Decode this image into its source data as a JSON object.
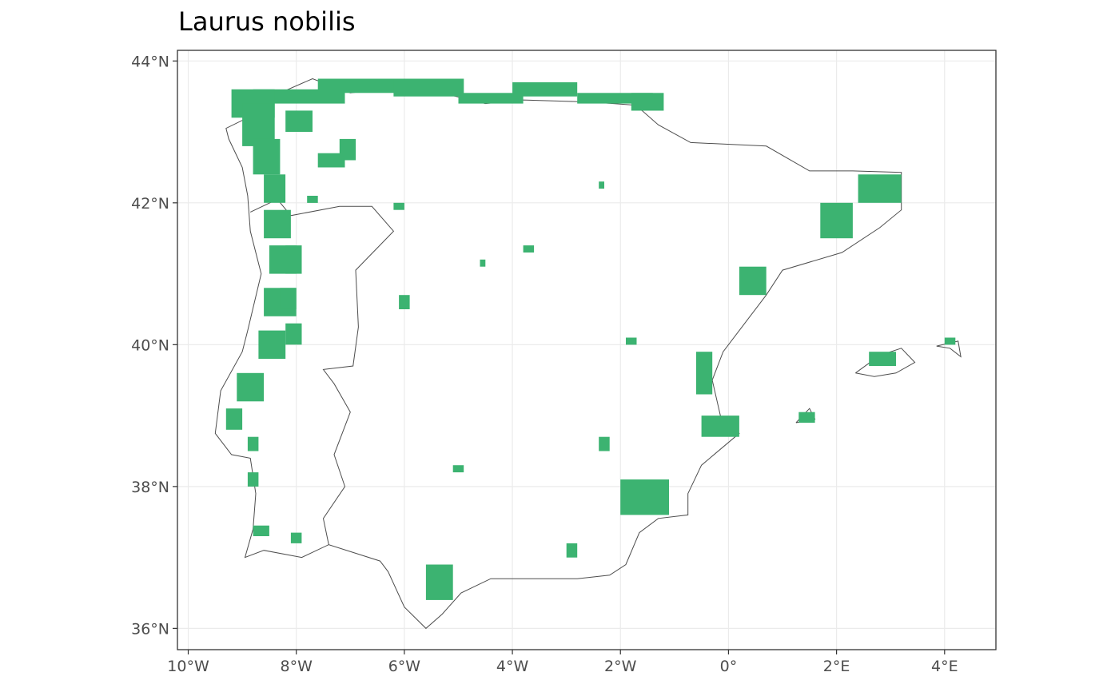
{
  "title": "Laurus nobilis",
  "colors": {
    "occurrence": "#3cb371",
    "coastline": "#4d4d4d",
    "grid": "#ebebeb",
    "frame": "#333333",
    "tick_label": "#4d4d4d"
  },
  "chart_data": {
    "type": "map",
    "projection": "longitude-latitude",
    "xlim": [
      -10.2,
      4.95
    ],
    "ylim": [
      35.7,
      44.15
    ],
    "grid": true,
    "x_ticks": [
      {
        "value": -10,
        "label": "10°W"
      },
      {
        "value": -8,
        "label": "8°W"
      },
      {
        "value": -6,
        "label": "6°W"
      },
      {
        "value": -4,
        "label": "4°W"
      },
      {
        "value": -2,
        "label": "2°W"
      },
      {
        "value": 0,
        "label": "0°"
      },
      {
        "value": 2,
        "label": "2°E"
      },
      {
        "value": 4,
        "label": "4°E"
      }
    ],
    "y_ticks": [
      {
        "value": 36,
        "label": "36°N"
      },
      {
        "value": 38,
        "label": "38°N"
      },
      {
        "value": 40,
        "label": "40°N"
      },
      {
        "value": 42,
        "label": "42°N"
      },
      {
        "value": 44,
        "label": "44°N"
      }
    ],
    "outlines": [
      {
        "name": "Iberian Peninsula",
        "points": [
          [
            -8.9,
            43.2
          ],
          [
            -8.3,
            43.55
          ],
          [
            -7.7,
            43.75
          ],
          [
            -7.0,
            43.55
          ],
          [
            -5.85,
            43.65
          ],
          [
            -4.5,
            43.4
          ],
          [
            -3.8,
            43.45
          ],
          [
            -2.5,
            43.42
          ],
          [
            -1.8,
            43.38
          ],
          [
            -1.6,
            43.3
          ],
          [
            -1.3,
            43.1
          ],
          [
            -0.7,
            42.85
          ],
          [
            0.7,
            42.8
          ],
          [
            1.5,
            42.45
          ],
          [
            2.3,
            42.45
          ],
          [
            3.2,
            42.43
          ],
          [
            3.2,
            41.9
          ],
          [
            2.8,
            41.65
          ],
          [
            2.1,
            41.3
          ],
          [
            1.0,
            41.05
          ],
          [
            0.7,
            40.7
          ],
          [
            0.3,
            40.3
          ],
          [
            -0.1,
            39.9
          ],
          [
            -0.3,
            39.5
          ],
          [
            -0.15,
            39.0
          ],
          [
            0.2,
            38.75
          ],
          [
            -0.5,
            38.3
          ],
          [
            -0.75,
            37.9
          ],
          [
            -0.75,
            37.6
          ],
          [
            -1.3,
            37.55
          ],
          [
            -1.65,
            37.35
          ],
          [
            -1.9,
            36.9
          ],
          [
            -2.2,
            36.75
          ],
          [
            -2.8,
            36.7
          ],
          [
            -3.4,
            36.7
          ],
          [
            -4.4,
            36.7
          ],
          [
            -4.95,
            36.5
          ],
          [
            -5.3,
            36.2
          ],
          [
            -5.6,
            36.0
          ],
          [
            -6.0,
            36.3
          ],
          [
            -6.3,
            36.8
          ],
          [
            -6.45,
            36.95
          ],
          [
            -7.4,
            37.18
          ],
          [
            -7.9,
            37.0
          ],
          [
            -8.6,
            37.1
          ],
          [
            -8.95,
            37.0
          ],
          [
            -8.8,
            37.4
          ],
          [
            -8.75,
            37.9
          ],
          [
            -8.85,
            38.4
          ],
          [
            -9.2,
            38.45
          ],
          [
            -9.5,
            38.75
          ],
          [
            -9.4,
            39.35
          ],
          [
            -9.0,
            39.9
          ],
          [
            -8.9,
            40.2
          ],
          [
            -8.65,
            41.0
          ],
          [
            -8.85,
            41.6
          ],
          [
            -8.9,
            42.1
          ],
          [
            -9.0,
            42.5
          ],
          [
            -9.25,
            42.9
          ],
          [
            -9.3,
            43.05
          ],
          [
            -8.9,
            43.2
          ]
        ]
      },
      {
        "name": "Portugal border",
        "points": [
          [
            -8.85,
            41.87
          ],
          [
            -8.35,
            42.05
          ],
          [
            -8.1,
            41.82
          ],
          [
            -7.2,
            41.95
          ],
          [
            -6.6,
            41.95
          ],
          [
            -6.2,
            41.6
          ],
          [
            -6.9,
            41.05
          ],
          [
            -6.85,
            40.25
          ],
          [
            -6.95,
            39.7
          ],
          [
            -7.5,
            39.65
          ],
          [
            -7.3,
            39.45
          ],
          [
            -7.0,
            39.05
          ],
          [
            -7.3,
            38.45
          ],
          [
            -7.1,
            38.0
          ],
          [
            -7.5,
            37.55
          ],
          [
            -7.4,
            37.18
          ]
        ]
      },
      {
        "name": "Mallorca",
        "points": [
          [
            2.35,
            39.6
          ],
          [
            2.7,
            39.55
          ],
          [
            3.1,
            39.6
          ],
          [
            3.45,
            39.75
          ],
          [
            3.2,
            39.95
          ],
          [
            2.8,
            39.85
          ],
          [
            2.35,
            39.6
          ]
        ]
      },
      {
        "name": "Menorca",
        "points": [
          [
            3.85,
            39.98
          ],
          [
            4.1,
            39.95
          ],
          [
            4.3,
            39.83
          ],
          [
            4.25,
            40.05
          ],
          [
            3.85,
            39.98
          ]
        ]
      },
      {
        "name": "Ibiza",
        "points": [
          [
            1.25,
            38.9
          ],
          [
            1.6,
            38.95
          ],
          [
            1.5,
            39.1
          ],
          [
            1.25,
            38.9
          ]
        ]
      }
    ],
    "occurrence_cells": [
      {
        "lon": -8.8,
        "lat": 43.4,
        "w": 1.7,
        "h": 0.2
      },
      {
        "lon": -7.6,
        "lat": 43.55,
        "w": 1.5,
        "h": 0.2
      },
      {
        "lon": -6.2,
        "lat": 43.5,
        "w": 1.3,
        "h": 0.25
      },
      {
        "lon": -5.0,
        "lat": 43.4,
        "w": 1.2,
        "h": 0.15
      },
      {
        "lon": -4.0,
        "lat": 43.5,
        "w": 1.2,
        "h": 0.2
      },
      {
        "lon": -2.8,
        "lat": 43.4,
        "w": 1.4,
        "h": 0.15
      },
      {
        "lon": -1.8,
        "lat": 43.3,
        "w": 0.6,
        "h": 0.25
      },
      {
        "lon": -9.2,
        "lat": 43.2,
        "w": 0.8,
        "h": 0.4
      },
      {
        "lon": -9.0,
        "lat": 42.8,
        "w": 0.6,
        "h": 0.6
      },
      {
        "lon": -8.8,
        "lat": 42.4,
        "w": 0.5,
        "h": 0.5
      },
      {
        "lon": -8.6,
        "lat": 42.0,
        "w": 0.4,
        "h": 0.4
      },
      {
        "lon": -8.6,
        "lat": 41.5,
        "w": 0.5,
        "h": 0.4
      },
      {
        "lon": -8.5,
        "lat": 41.0,
        "w": 0.5,
        "h": 0.4
      },
      {
        "lon": -8.6,
        "lat": 40.4,
        "w": 0.6,
        "h": 0.4
      },
      {
        "lon": -8.7,
        "lat": 39.8,
        "w": 0.5,
        "h": 0.4
      },
      {
        "lon": -9.1,
        "lat": 39.2,
        "w": 0.5,
        "h": 0.4
      },
      {
        "lon": -9.3,
        "lat": 38.8,
        "w": 0.3,
        "h": 0.3
      },
      {
        "lon": -8.2,
        "lat": 43.0,
        "w": 0.5,
        "h": 0.3
      },
      {
        "lon": -7.6,
        "lat": 42.5,
        "w": 0.5,
        "h": 0.2
      },
      {
        "lon": -7.2,
        "lat": 42.6,
        "w": 0.3,
        "h": 0.3
      },
      {
        "lon": -8.2,
        "lat": 41.0,
        "w": 0.3,
        "h": 0.4
      },
      {
        "lon": -8.3,
        "lat": 40.5,
        "w": 0.3,
        "h": 0.3
      },
      {
        "lon": -8.2,
        "lat": 40.0,
        "w": 0.3,
        "h": 0.3
      },
      {
        "lon": -8.9,
        "lat": 38.5,
        "w": 0.2,
        "h": 0.2
      },
      {
        "lon": -8.9,
        "lat": 38.0,
        "w": 0.2,
        "h": 0.2
      },
      {
        "lon": -8.8,
        "lat": 37.3,
        "w": 0.3,
        "h": 0.15
      },
      {
        "lon": -8.1,
        "lat": 37.2,
        "w": 0.2,
        "h": 0.15
      },
      {
        "lon": -7.8,
        "lat": 42.0,
        "w": 0.2,
        "h": 0.1
      },
      {
        "lon": -6.2,
        "lat": 41.9,
        "w": 0.2,
        "h": 0.1
      },
      {
        "lon": -6.1,
        "lat": 40.5,
        "w": 0.2,
        "h": 0.2
      },
      {
        "lon": -4.6,
        "lat": 41.1,
        "w": 0.1,
        "h": 0.1
      },
      {
        "lon": -3.8,
        "lat": 41.3,
        "w": 0.2,
        "h": 0.1
      },
      {
        "lon": -2.4,
        "lat": 38.5,
        "w": 0.2,
        "h": 0.2
      },
      {
        "lon": -2.0,
        "lat": 37.6,
        "w": 0.9,
        "h": 0.5
      },
      {
        "lon": -5.6,
        "lat": 36.4,
        "w": 0.5,
        "h": 0.5
      },
      {
        "lon": -5.1,
        "lat": 38.2,
        "w": 0.2,
        "h": 0.1
      },
      {
        "lon": -3.0,
        "lat": 37.0,
        "w": 0.2,
        "h": 0.2
      },
      {
        "lon": -0.6,
        "lat": 39.3,
        "w": 0.3,
        "h": 0.6
      },
      {
        "lon": -0.5,
        "lat": 38.7,
        "w": 0.7,
        "h": 0.3
      },
      {
        "lon": 0.2,
        "lat": 40.7,
        "w": 0.5,
        "h": 0.4
      },
      {
        "lon": 1.7,
        "lat": 41.5,
        "w": 0.6,
        "h": 0.5
      },
      {
        "lon": 2.4,
        "lat": 42.0,
        "w": 0.8,
        "h": 0.4
      },
      {
        "lon": -1.9,
        "lat": 40.0,
        "w": 0.2,
        "h": 0.1
      },
      {
        "lon": -2.4,
        "lat": 42.2,
        "w": 0.1,
        "h": 0.1
      },
      {
        "lon": 2.6,
        "lat": 39.7,
        "w": 0.5,
        "h": 0.2
      },
      {
        "lon": 4.0,
        "lat": 40.0,
        "w": 0.2,
        "h": 0.1
      },
      {
        "lon": 1.3,
        "lat": 38.9,
        "w": 0.3,
        "h": 0.15
      }
    ]
  }
}
